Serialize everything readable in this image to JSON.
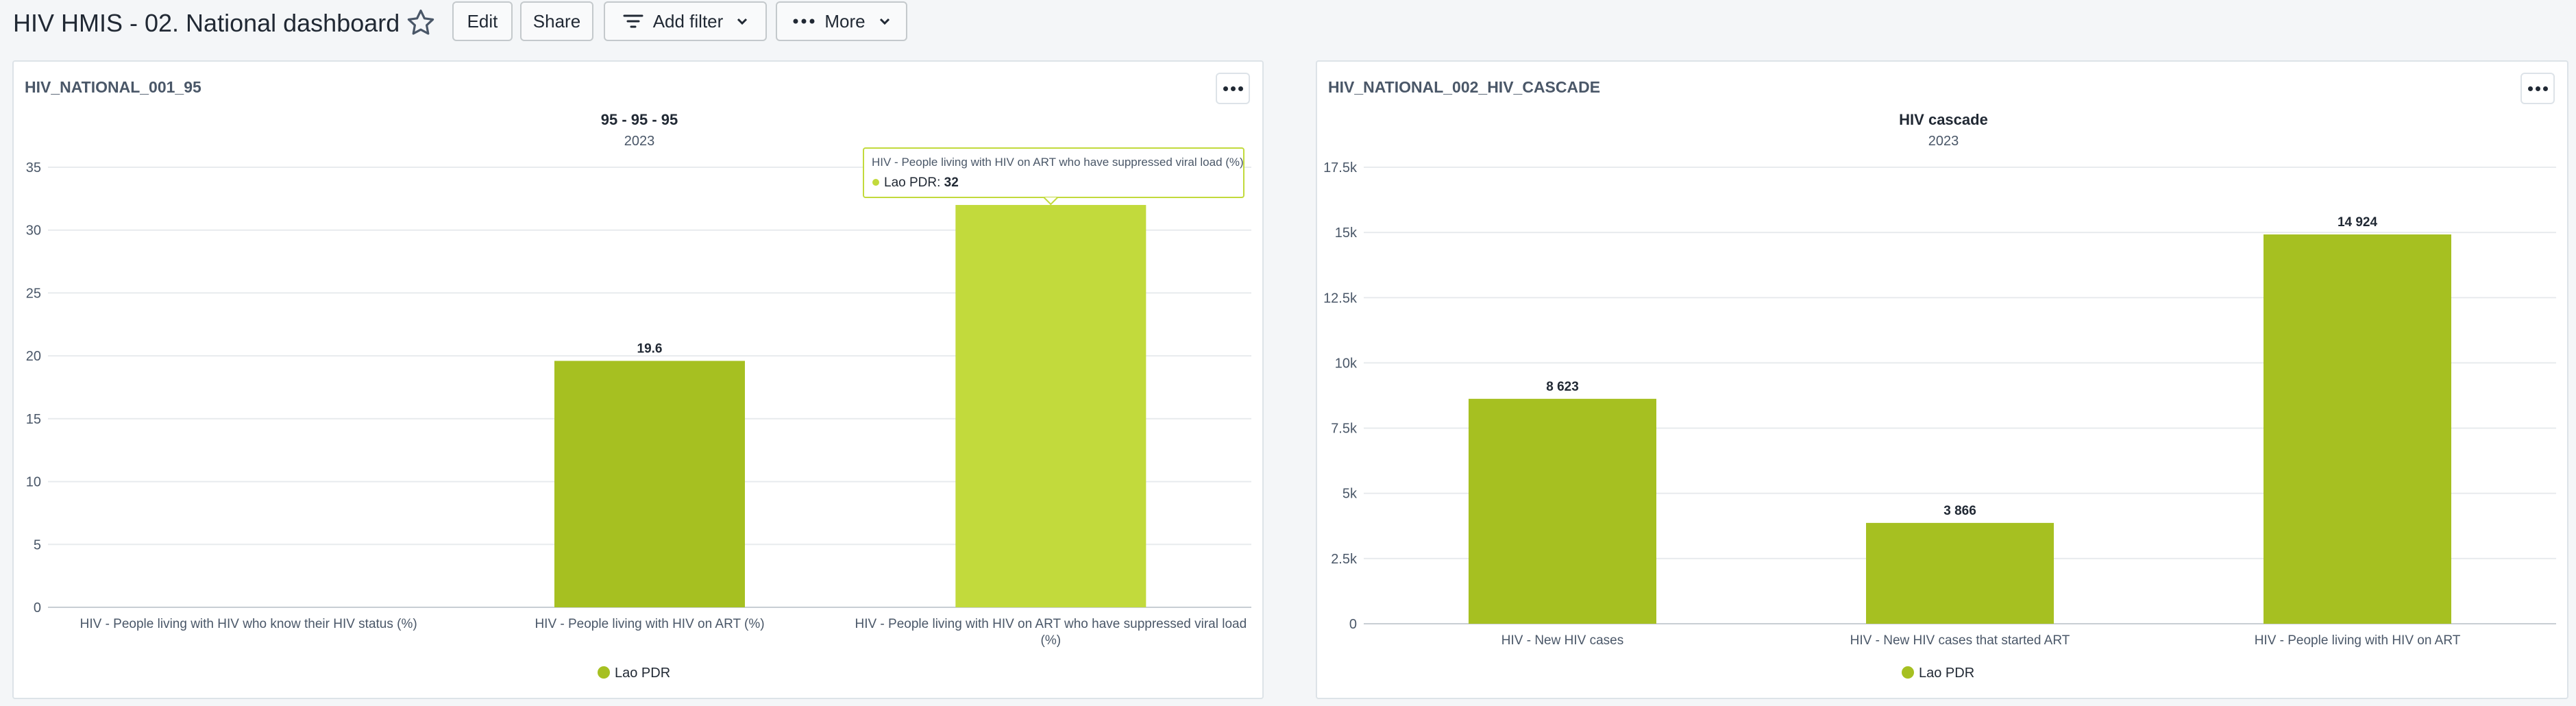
{
  "header": {
    "title": "HIV HMIS - 02. National dashboard",
    "edit_label": "Edit",
    "share_label": "Share",
    "add_filter_label": "Add filter",
    "more_label": "More"
  },
  "colors": {
    "series": "#a6c021",
    "highlight": "#c2da3c",
    "grid": "#e8ebee",
    "text": "#212934"
  },
  "cards": [
    {
      "title": "HIV_NATIONAL_001_95",
      "chart_data": {
        "type": "bar",
        "title": "95 - 95 - 95",
        "subtitle": "2023",
        "categories": [
          "HIV - People living with HIV who know their HIV status (%)",
          "HIV - People living with HIV on ART (%)",
          "HIV - People living with HIV on ART who have suppressed viral load (%)"
        ],
        "category_lines": [
          [
            "HIV - People living with HIV who know their HIV status (%)"
          ],
          [
            "HIV - People living with HIV on ART (%)"
          ],
          [
            "HIV - People living with HIV on ART who have suppressed viral load",
            "(%)"
          ]
        ],
        "series": [
          {
            "name": "Lao PDR",
            "values": [
              null,
              19.6,
              32
            ]
          }
        ],
        "data_labels": [
          "",
          "19.6",
          "32"
        ],
        "ylim": [
          0,
          35
        ],
        "yticks": [
          0,
          5,
          10,
          15,
          20,
          25,
          30,
          35
        ],
        "ytick_labels": [
          "0",
          "5",
          "10",
          "15",
          "20",
          "25",
          "30",
          "35"
        ],
        "highlighted_index": 2,
        "legend": "bottom-center",
        "grid": true,
        "tooltip": {
          "title": "HIV - People living with HIV on ART who have suppressed viral load (%)",
          "series": "Lao PDR",
          "value": "32"
        }
      }
    },
    {
      "title": "HIV_NATIONAL_002_HIV_CASCADE",
      "chart_data": {
        "type": "bar",
        "title": "HIV cascade",
        "subtitle": "2023",
        "categories": [
          "HIV - New HIV cases",
          "HIV - New HIV cases that started ART",
          "HIV - People living with HIV on ART"
        ],
        "category_lines": [
          [
            "HIV - New HIV cases"
          ],
          [
            "HIV - New HIV cases that started ART"
          ],
          [
            "HIV - People living with HIV on ART"
          ]
        ],
        "series": [
          {
            "name": "Lao PDR",
            "values": [
              8623,
              3866,
              14924
            ]
          }
        ],
        "data_labels": [
          "8 623",
          "3 866",
          "14 924"
        ],
        "ylim": [
          0,
          17500
        ],
        "yticks": [
          0,
          2500,
          5000,
          7500,
          10000,
          12500,
          15000,
          17500
        ],
        "ytick_labels": [
          "0",
          "2.5k",
          "5k",
          "7.5k",
          "10k",
          "12.5k",
          "15k",
          "17.5k"
        ],
        "highlighted_index": null,
        "legend": "bottom-center",
        "grid": true
      }
    }
  ]
}
